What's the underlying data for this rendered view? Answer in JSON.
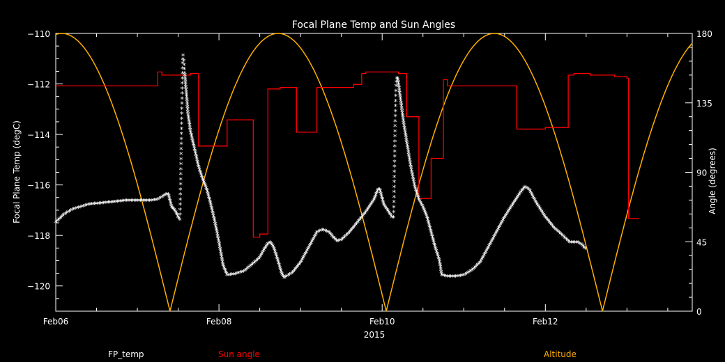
{
  "chart_data": {
    "type": "line",
    "title": "Focal Plane Temp and Sun Angles",
    "xlabel": "2015",
    "ylabel_left": "Focal Plane Temp (degC)",
    "ylabel_right": "Angle (degrees)",
    "x_unit": "days since Feb06 2015 00:00",
    "xlim": [
      0,
      7.8
    ],
    "ylim_left": [
      -121,
      -110
    ],
    "ylim_right": [
      0,
      180
    ],
    "x_ticks": [
      {
        "value": 0,
        "label": "Feb06"
      },
      {
        "value": 2,
        "label": "Feb08"
      },
      {
        "value": 4,
        "label": "Feb10"
      },
      {
        "value": 6,
        "label": "Feb12"
      }
    ],
    "y_ticks_left": [
      -110,
      -112,
      -114,
      -116,
      -118,
      -120
    ],
    "y_ticks_right": [
      0,
      45,
      90,
      135,
      180
    ],
    "grid": false,
    "series": [
      {
        "name": "FP_temp",
        "axis": "left",
        "color": "#ffffff",
        "marker": "*",
        "points": [
          [
            0.0,
            -117.5
          ],
          [
            0.1,
            -117.2
          ],
          [
            0.2,
            -117.0
          ],
          [
            0.3,
            -116.9
          ],
          [
            0.4,
            -116.8
          ],
          [
            0.55,
            -116.75
          ],
          [
            0.7,
            -116.7
          ],
          [
            0.85,
            -116.65
          ],
          [
            1.0,
            -116.65
          ],
          [
            1.15,
            -116.65
          ],
          [
            1.25,
            -116.6
          ],
          [
            1.3,
            -116.5
          ],
          [
            1.35,
            -116.4
          ],
          [
            1.38,
            -116.4
          ],
          [
            1.42,
            -116.9
          ],
          [
            1.45,
            -117.0
          ],
          [
            1.48,
            -117.15
          ],
          [
            1.5,
            -117.3
          ],
          [
            1.52,
            -117.4
          ],
          [
            1.525,
            -116.8
          ],
          [
            1.53,
            -116.0
          ],
          [
            1.535,
            -115.0
          ],
          [
            1.54,
            -114.0
          ],
          [
            1.545,
            -113.0
          ],
          [
            1.55,
            -112.0
          ],
          [
            1.555,
            -111.2
          ],
          [
            1.56,
            -110.9
          ],
          [
            1.57,
            -111.1
          ],
          [
            1.58,
            -111.6
          ],
          [
            1.6,
            -112.4
          ],
          [
            1.62,
            -113.2
          ],
          [
            1.65,
            -113.9
          ],
          [
            1.7,
            -114.6
          ],
          [
            1.75,
            -115.3
          ],
          [
            1.8,
            -115.8
          ],
          [
            1.85,
            -116.2
          ],
          [
            1.9,
            -116.8
          ],
          [
            1.95,
            -117.5
          ],
          [
            2.0,
            -118.3
          ],
          [
            2.05,
            -119.2
          ],
          [
            2.1,
            -119.6
          ],
          [
            2.2,
            -119.55
          ],
          [
            2.3,
            -119.45
          ],
          [
            2.4,
            -119.2
          ],
          [
            2.5,
            -118.9
          ],
          [
            2.55,
            -118.6
          ],
          [
            2.6,
            -118.35
          ],
          [
            2.63,
            -118.3
          ],
          [
            2.67,
            -118.5
          ],
          [
            2.72,
            -119.0
          ],
          [
            2.77,
            -119.55
          ],
          [
            2.8,
            -119.7
          ],
          [
            2.9,
            -119.5
          ],
          [
            3.0,
            -119.1
          ],
          [
            3.1,
            -118.5
          ],
          [
            3.2,
            -117.9
          ],
          [
            3.27,
            -117.8
          ],
          [
            3.35,
            -117.9
          ],
          [
            3.4,
            -118.1
          ],
          [
            3.45,
            -118.25
          ],
          [
            3.5,
            -118.2
          ],
          [
            3.6,
            -117.9
          ],
          [
            3.7,
            -117.5
          ],
          [
            3.8,
            -117.1
          ],
          [
            3.9,
            -116.6
          ],
          [
            3.95,
            -116.2
          ],
          [
            3.97,
            -116.2
          ],
          [
            4.02,
            -116.8
          ],
          [
            4.08,
            -117.1
          ],
          [
            4.12,
            -117.3
          ],
          [
            4.14,
            -117.3
          ],
          [
            4.145,
            -116.5
          ],
          [
            4.15,
            -115.5
          ],
          [
            4.155,
            -114.5
          ],
          [
            4.16,
            -113.5
          ],
          [
            4.165,
            -112.7
          ],
          [
            4.17,
            -112.1
          ],
          [
            4.18,
            -111.8
          ],
          [
            4.19,
            -111.8
          ],
          [
            4.22,
            -112.5
          ],
          [
            4.26,
            -113.5
          ],
          [
            4.3,
            -114.3
          ],
          [
            4.35,
            -115.3
          ],
          [
            4.4,
            -116.1
          ],
          [
            4.45,
            -116.6
          ],
          [
            4.5,
            -116.9
          ],
          [
            4.55,
            -117.3
          ],
          [
            4.6,
            -117.9
          ],
          [
            4.65,
            -118.5
          ],
          [
            4.7,
            -119.0
          ],
          [
            4.73,
            -119.6
          ],
          [
            4.8,
            -119.65
          ],
          [
            4.9,
            -119.65
          ],
          [
            5.0,
            -119.6
          ],
          [
            5.1,
            -119.4
          ],
          [
            5.2,
            -119.1
          ],
          [
            5.3,
            -118.5
          ],
          [
            5.4,
            -117.9
          ],
          [
            5.5,
            -117.3
          ],
          [
            5.6,
            -116.8
          ],
          [
            5.7,
            -116.3
          ],
          [
            5.75,
            -116.1
          ],
          [
            5.8,
            -116.2
          ],
          [
            5.9,
            -116.8
          ],
          [
            6.0,
            -117.3
          ],
          [
            6.1,
            -117.7
          ],
          [
            6.2,
            -118.0
          ],
          [
            6.3,
            -118.3
          ],
          [
            6.4,
            -118.3
          ],
          [
            6.45,
            -118.4
          ],
          [
            6.5,
            -118.6
          ]
        ]
      },
      {
        "name": "Sun angle",
        "axis": "right",
        "color": "#ff0000",
        "marker": "step",
        "points": [
          [
            0.0,
            146
          ],
          [
            1.25,
            146
          ],
          [
            1.25,
            155
          ],
          [
            1.3,
            155
          ],
          [
            1.3,
            153
          ],
          [
            1.65,
            153
          ],
          [
            1.65,
            154
          ],
          [
            1.75,
            154
          ],
          [
            1.75,
            107
          ],
          [
            2.1,
            107
          ],
          [
            2.1,
            124
          ],
          [
            2.42,
            124
          ],
          [
            2.42,
            48
          ],
          [
            2.5,
            48
          ],
          [
            2.5,
            50
          ],
          [
            2.6,
            50
          ],
          [
            2.6,
            144
          ],
          [
            2.75,
            144
          ],
          [
            2.75,
            145
          ],
          [
            2.95,
            145
          ],
          [
            2.95,
            116
          ],
          [
            3.2,
            116
          ],
          [
            3.2,
            145
          ],
          [
            3.65,
            145
          ],
          [
            3.65,
            147
          ],
          [
            3.75,
            147
          ],
          [
            3.75,
            154
          ],
          [
            3.8,
            154
          ],
          [
            3.8,
            155
          ],
          [
            4.2,
            155
          ],
          [
            4.2,
            154
          ],
          [
            4.3,
            154
          ],
          [
            4.3,
            126
          ],
          [
            4.45,
            126
          ],
          [
            4.45,
            73
          ],
          [
            4.6,
            73
          ],
          [
            4.6,
            99
          ],
          [
            4.75,
            99
          ],
          [
            4.75,
            150
          ],
          [
            4.8,
            150
          ],
          [
            4.8,
            146
          ],
          [
            5.65,
            146
          ],
          [
            5.65,
            118
          ],
          [
            6.0,
            118
          ],
          [
            6.0,
            119
          ],
          [
            6.28,
            119
          ],
          [
            6.28,
            153
          ],
          [
            6.35,
            153
          ],
          [
            6.35,
            154
          ],
          [
            6.55,
            154
          ],
          [
            6.55,
            153
          ],
          [
            6.85,
            153
          ],
          [
            6.85,
            152
          ],
          [
            7.0,
            152
          ],
          [
            7.0,
            151
          ],
          [
            7.02,
            151
          ],
          [
            7.02,
            60
          ],
          [
            7.12,
            60
          ],
          [
            7.12,
            60
          ],
          [
            7.15,
            60
          ]
        ]
      },
      {
        "name": "Altitude",
        "axis": "right",
        "color": "#ffb000",
        "marker": "line",
        "model": {
          "amplitude": 180,
          "period_days": 2.65,
          "zero_at_day": 1.4
        }
      }
    ],
    "legend": [
      "FP_temp",
      "Sun angle",
      "Altitude"
    ],
    "legend_placement": "bottom"
  }
}
